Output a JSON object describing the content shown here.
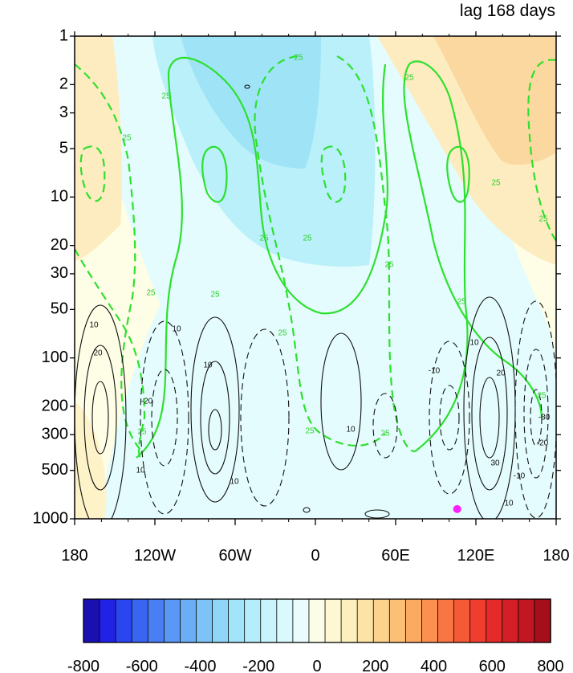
{
  "chart_data": {
    "type": "heatmap",
    "title": "lag 168 days",
    "xlabel": "",
    "ylabel": "",
    "x_ticks": [
      "180",
      "120W",
      "60W",
      "0",
      "60E",
      "120E",
      "180"
    ],
    "x_tick_values": [
      -180,
      -120,
      -60,
      0,
      60,
      120,
      180
    ],
    "xlim": [
      -180,
      180
    ],
    "y_ticks": [
      "1",
      "2",
      "3",
      "5",
      "10",
      "20",
      "30",
      "50",
      "100",
      "200",
      "300",
      "500",
      "1000"
    ],
    "y_tick_values": [
      1,
      2,
      3,
      5,
      10,
      20,
      30,
      50,
      100,
      200,
      300,
      500,
      1000
    ],
    "ylim": [
      1000,
      1
    ],
    "y_scale": "log",
    "y_reversed": true,
    "colorbar": {
      "levels": [
        -800,
        -750,
        -700,
        -650,
        -600,
        -550,
        -500,
        -450,
        -400,
        -350,
        -300,
        -250,
        -200,
        -150,
        -100,
        -50,
        0,
        50,
        100,
        150,
        200,
        250,
        300,
        350,
        400,
        450,
        500,
        550,
        600,
        650,
        700,
        750,
        800
      ],
      "tick_labels": [
        "-800",
        "-600",
        "-400",
        "-200",
        "0",
        "200",
        "400",
        "600",
        "800"
      ],
      "tick_values": [
        -800,
        -600,
        -400,
        -200,
        0,
        200,
        400,
        600,
        800
      ],
      "colors": [
        "#1a0fb0",
        "#2222e6",
        "#2b46f0",
        "#3a64f2",
        "#4a7ff4",
        "#5b97f5",
        "#6caef6",
        "#7dc3f7",
        "#8fd6f8",
        "#a2e4f9",
        "#b5eefa",
        "#c8f5fb",
        "#daf9fc",
        "#eafcfd",
        "#fbfde6",
        "#fdf8d2",
        "#fdf0bc",
        "#fde3a4",
        "#fdd28c",
        "#fcbf76",
        "#fca962",
        "#fb9050",
        "#f97542",
        "#f55a37",
        "#ef3e30",
        "#e52a2a",
        "#d41f26",
        "#c01722",
        "#a50f1c"
      ]
    },
    "contours_green": {
      "label": "25",
      "levels": [
        -25,
        25
      ],
      "label_positions": [
        {
          "x": -150,
          "p": 1,
          "value": "25"
        }
      ]
    },
    "contours_black": {
      "levels": [
        -30,
        -20,
        -10,
        10,
        20,
        30
      ],
      "labels": [
        "10",
        "20",
        "30",
        "-10",
        "-20",
        "-30"
      ]
    },
    "marker": {
      "x": 106,
      "p": 870,
      "color": "#ff1eff"
    }
  }
}
